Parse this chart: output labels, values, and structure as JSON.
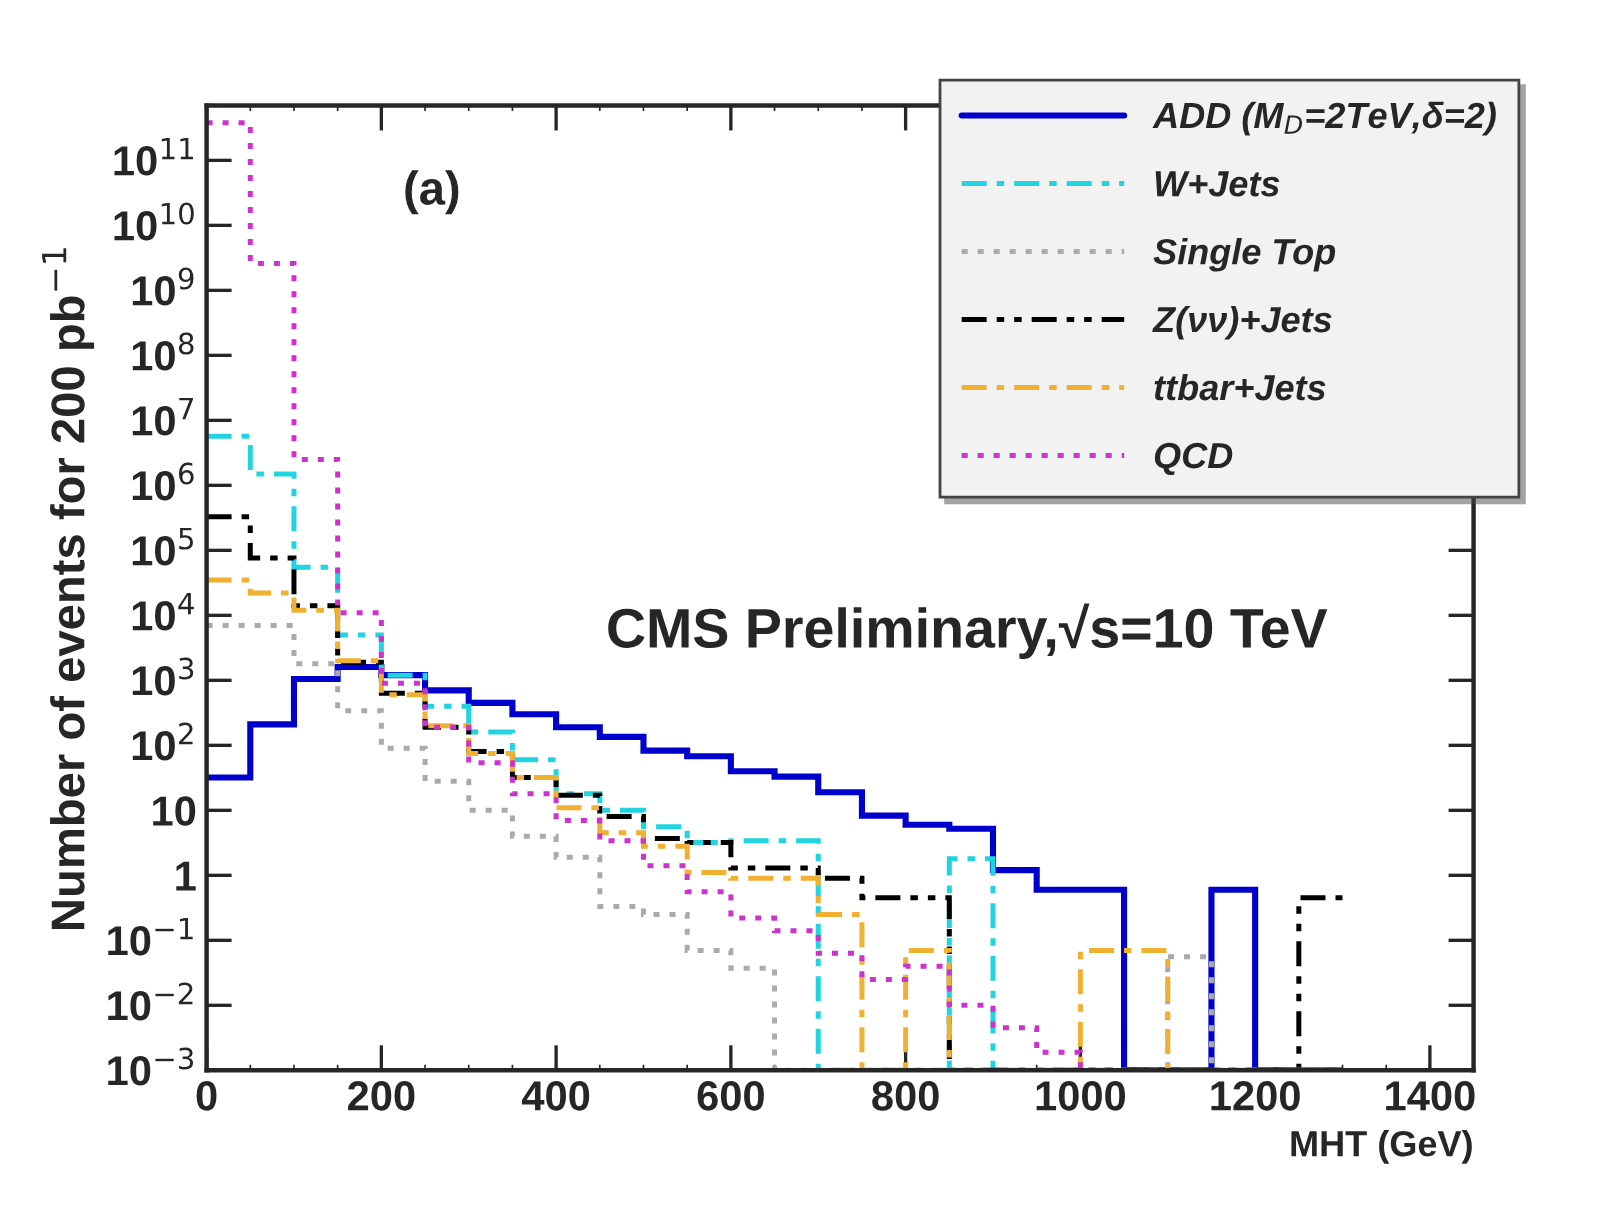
{
  "chart_data": {
    "type": "histogram",
    "xlabel": "MHT (GeV)",
    "ylabel": "Number of events for 200 pb$^{−1}$",
    "annotations": [
      "(a)",
      "CMS Preliminary,√s=10 TeV"
    ],
    "bins": [
      0,
      50,
      100,
      150,
      200,
      250,
      300,
      350,
      400,
      450,
      500,
      550,
      600,
      650,
      700,
      750,
      800,
      850,
      900,
      950,
      1000,
      1050,
      1100,
      1150,
      1200,
      1250,
      1300
    ],
    "series": [
      {
        "name": "ADD (M$_{D}$=2TeV,δ=2)",
        "color": "#0000cc",
        "line_style": "solid",
        "values": [
          32,
          210,
          1050,
          1600,
          1200,
          700,
          450,
          300,
          190,
          135,
          83,
          68,
          40,
          33,
          19,
          8.3,
          6,
          5.2,
          1.2,
          0.6,
          0.6,
          null,
          null,
          0.6,
          null,
          null
        ]
      },
      {
        "name": "W+Jets",
        "color": "#22d3e0",
        "line_style": "dashdot",
        "values": [
          5700000,
          1500000,
          55000,
          5000,
          1200,
          400,
          160,
          60,
          18,
          10,
          5.6,
          3.2,
          3.4,
          3.4,
          null,
          null,
          null,
          1.8,
          null,
          null,
          null,
          null,
          null,
          null,
          null,
          null
        ]
      },
      {
        "name": "Single Top",
        "color": "#aaaaaa",
        "line_style": "dotted",
        "values": [
          7000,
          7000,
          1800,
          340,
          90,
          28,
          10,
          4,
          1.9,
          0.33,
          0.25,
          0.07,
          0.037,
          null,
          null,
          null,
          null,
          null,
          null,
          null,
          null,
          null,
          0.056,
          null,
          null,
          null
        ]
      },
      {
        "name": "Z(νν)+Jets",
        "color": "#000000",
        "line_style": "dashdotdot",
        "values": [
          330000,
          76000,
          14000,
          1900,
          630,
          190,
          80,
          32,
          17,
          8,
          3.7,
          3.2,
          1.3,
          1.3,
          0.9,
          0.45,
          0.45,
          null,
          null,
          null,
          null,
          null,
          null,
          null,
          null,
          0.45
        ]
      },
      {
        "name": "ttbar+Jets",
        "color": "#f0b030",
        "line_style": "dashdot",
        "values": [
          35000,
          22000,
          12000,
          2000,
          600,
          200,
          75,
          32,
          11,
          4.5,
          2.8,
          1.1,
          0.9,
          0.9,
          0.25,
          null,
          0.07,
          null,
          null,
          null,
          0.07,
          0.07,
          null,
          null,
          null,
          null
        ]
      },
      {
        "name": "QCD",
        "color": "#cc33cc",
        "line_style": "dotted",
        "values": [
          380000000000,
          2600000000,
          2500000,
          11000,
          900,
          190,
          54,
          18,
          7,
          3.4,
          1.4,
          0.56,
          0.22,
          0.14,
          0.063,
          0.025,
          0.04,
          0.01,
          0.0045,
          0.0019,
          null,
          null,
          null,
          null,
          null,
          null
        ]
      }
    ],
    "log": "y",
    "xlim": [
      0,
      1450
    ],
    "xticks": [
      0,
      200,
      400,
      600,
      800,
      1000,
      1200,
      1400
    ],
    "ylim": [
      0.001,
      700000000000
    ],
    "yticks": [
      {
        "value": 0.001,
        "label": "10$^{−3}$"
      },
      {
        "value": 0.01,
        "label": "10$^{−2}$"
      },
      {
        "value": 0.1,
        "label": "10$^{−1}$"
      },
      1,
      10,
      {
        "value": 100,
        "label": "10$^{2}$"
      },
      {
        "value": 1000,
        "label": "10$^{3}$"
      },
      {
        "value": 10000,
        "label": "10$^{4}$"
      },
      {
        "value": 100000,
        "label": "10$^{5}$"
      },
      {
        "value": 1000000,
        "label": "10$^{6}$"
      },
      {
        "value": 10000000,
        "label": "10$^{7}$"
      },
      {
        "value": 100000000,
        "label": "10$^{8}$"
      },
      {
        "value": 1000000000,
        "label": "10$^{9}$"
      },
      {
        "value": 10000000000,
        "label": "10$^{10}$"
      },
      {
        "value": 100000000000,
        "label": "10$^{11}$"
      }
    ],
    "grid": false,
    "legend": "top right"
  }
}
